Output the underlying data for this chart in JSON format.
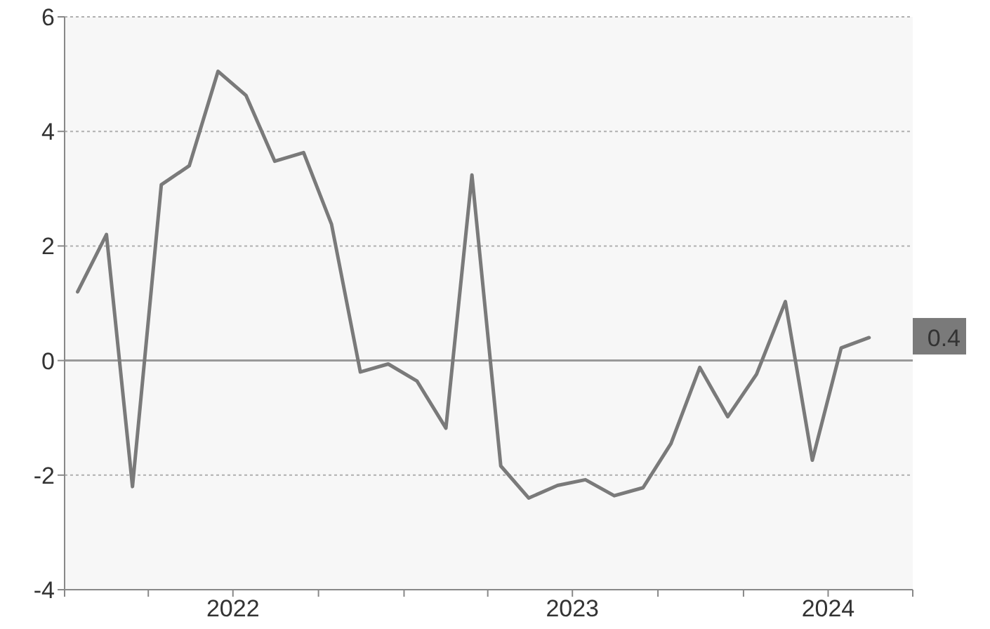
{
  "chart_data": {
    "type": "line",
    "x": [
      "2022-01-15",
      "2022-02-15",
      "2022-03-15",
      "2022-04-15",
      "2022-05-15",
      "2022-06-15",
      "2022-07-15",
      "2022-08-15",
      "2022-09-15",
      "2022-10-15",
      "2022-11-15",
      "2022-12-15",
      "2023-01-15",
      "2023-02-15",
      "2023-03-15",
      "2023-04-15",
      "2023-05-15",
      "2023-06-15",
      "2023-07-15",
      "2023-08-15",
      "2023-09-15",
      "2023-10-15",
      "2023-11-15",
      "2023-12-15",
      "2024-01-15",
      "2024-02-15",
      "2024-03-15",
      "2024-04-15",
      "2024-05-15"
    ],
    "series": [
      {
        "color": "#7a7a7a",
        "values": [
          1.2,
          2.2,
          -2.2,
          3.07,
          3.4,
          5.05,
          4.63,
          3.48,
          3.63,
          2.38,
          -0.2,
          -0.06,
          -0.36,
          -1.18,
          3.24,
          -1.84,
          -2.4,
          -2.18,
          -2.08,
          -2.36,
          -2.22,
          -1.45,
          -0.12,
          -0.98,
          -0.24,
          1.03,
          -1.74,
          0.22,
          0.4
        ]
      }
    ],
    "xlim": [
      "2022-01",
      "2024-07"
    ],
    "xticks": [
      {
        "value": "2022-01",
        "label": null
      },
      {
        "value": "2022-04",
        "label": null
      },
      {
        "value": "2022-07",
        "label": "2022"
      },
      {
        "value": "2022-10",
        "label": null
      },
      {
        "value": "2023-01",
        "label": null
      },
      {
        "value": "2023-04",
        "label": null
      },
      {
        "value": "2023-07",
        "label": "2023"
      },
      {
        "value": "2023-10",
        "label": null
      },
      {
        "value": "2024-01",
        "label": null
      },
      {
        "value": "2024-04",
        "label": "2024"
      },
      {
        "value": "2024-07",
        "label": null
      }
    ],
    "ylim": [
      -4,
      6
    ],
    "yticks": [
      -4,
      -2,
      0,
      2,
      4,
      6
    ],
    "grid": "y",
    "marker": "none",
    "line_style": "solid",
    "ref_lines": [
      {
        "axis": "y",
        "value": 0,
        "color": "#999999"
      }
    ],
    "annotations": [
      {
        "text": "0.4",
        "x": "2024-05-15",
        "y": 0.4
      }
    ]
  }
}
